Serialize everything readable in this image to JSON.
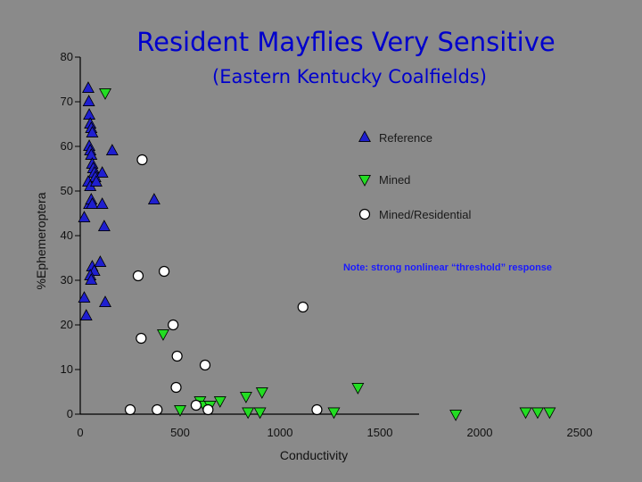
{
  "chart_data": {
    "type": "scatter",
    "title": "Resident Mayflies Very Sensitive",
    "subtitle": "(Eastern Kentucky Coalfields)",
    "xlabel": "Conductivity",
    "ylabel": "%Ephemeroptera",
    "xlim": [
      0,
      2500
    ],
    "ylim": [
      0,
      80
    ],
    "xticks": [
      "0",
      "500",
      "1000",
      "1500",
      "2000",
      "2500"
    ],
    "yticks": [
      "0",
      "10",
      "20",
      "30",
      "40",
      "50",
      "60",
      "70",
      "80"
    ],
    "grid": false,
    "legend_position": "right",
    "note": "Note: strong nonlinear “threshold” response",
    "colors": {
      "reference": "#1f1fd0",
      "mined": "#22dd22",
      "mined_residential": "#ffffff"
    },
    "series": [
      {
        "name": "Reference",
        "marker": "triangle-up",
        "points": [
          [
            40,
            73
          ],
          [
            43,
            70
          ],
          [
            45,
            67
          ],
          [
            50,
            65
          ],
          [
            55,
            64
          ],
          [
            60,
            63
          ],
          [
            45,
            60
          ],
          [
            50,
            59
          ],
          [
            55,
            58
          ],
          [
            60,
            56
          ],
          [
            65,
            55
          ],
          [
            70,
            54
          ],
          [
            110,
            54
          ],
          [
            75,
            53
          ],
          [
            40,
            52
          ],
          [
            50,
            51
          ],
          [
            80,
            52
          ],
          [
            160,
            59
          ],
          [
            45,
            47
          ],
          [
            55,
            48
          ],
          [
            60,
            47
          ],
          [
            110,
            47
          ],
          [
            20,
            44
          ],
          [
            120,
            42
          ],
          [
            370,
            48
          ],
          [
            100,
            34
          ],
          [
            60,
            33
          ],
          [
            70,
            32
          ],
          [
            50,
            31
          ],
          [
            55,
            30
          ],
          [
            20,
            26
          ],
          [
            125,
            25
          ],
          [
            30,
            22
          ]
        ]
      },
      {
        "name": "Mined",
        "marker": "triangle-down",
        "points": [
          [
            125,
            72
          ],
          [
            415,
            18
          ],
          [
            500,
            1
          ],
          [
            600,
            3
          ],
          [
            620,
            2
          ],
          [
            650,
            2
          ],
          [
            700,
            3
          ],
          [
            830,
            4
          ],
          [
            840,
            0.5
          ],
          [
            900,
            0.5
          ],
          [
            910,
            5
          ],
          [
            1270,
            0.5
          ],
          [
            1390,
            6
          ],
          [
            1880,
            0
          ],
          [
            2230,
            0.5
          ],
          [
            2290,
            0.5
          ],
          [
            2350,
            0.5
          ]
        ]
      },
      {
        "name": "Mined/Residential",
        "marker": "circle",
        "points": [
          [
            310,
            57
          ],
          [
            290,
            31
          ],
          [
            420,
            32
          ],
          [
            465,
            20
          ],
          [
            305,
            17
          ],
          [
            485,
            13
          ],
          [
            625,
            11
          ],
          [
            480,
            6
          ],
          [
            580,
            2
          ],
          [
            250,
            1
          ],
          [
            385,
            1
          ],
          [
            640,
            1
          ],
          [
            1115,
            24
          ],
          [
            1185,
            1
          ]
        ]
      }
    ]
  }
}
